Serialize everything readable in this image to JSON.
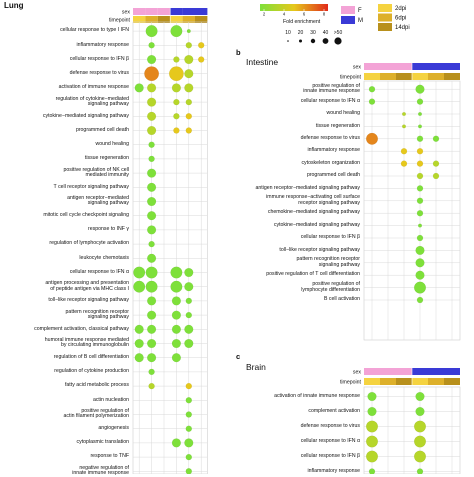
{
  "panels": {
    "lung": {
      "title": "Lung",
      "sex_label": "sex",
      "timepoint_label": "timepoint",
      "terms": [
        "cellular response to type I IFN",
        "inflammatory response",
        "cellular response to IFN β",
        "defense response to virus",
        "activation of immune response",
        "regulation of cytokine−mediated\nsignaling pathway",
        "cytokine−mediated signaling pathway",
        "programmed cell death",
        "wound healing",
        "tissue regeneration",
        "positive regulation of NK cell\nmediated immunity",
        "T cell receptor signaling pathway",
        "antigen receptor−mediated\nsignaling pathway",
        "mitotic cell cycle checkpoint signaling",
        "response to INF γ",
        "regulation of lymphocyte activation",
        "leukocyte chemotaxis",
        "cellular response to IFN α",
        "antigen processing and presentation\nof peptide antigen via MHC class I",
        "toll−like receptor signaling pathway",
        "pattern recognition receptor\nsignaling pathway",
        "complement activation, classical pathway",
        "humoral immune response mediated\nby circulating immunoglobulin",
        "regulation of B cell differentiation",
        "regulation of cytokine production",
        "fatty acid metabolic process",
        "actin nucleation",
        "positive regulation of\nactin filament polymerization",
        "angiogenesis",
        "cytoplasmic translation",
        "response to TNF",
        "negative regulation of\ninnate immune response"
      ]
    },
    "intestine": {
      "letter": "b",
      "title": "Intestine",
      "sex_label": "sex",
      "timepoint_label": "timepoint",
      "terms": [
        "positive regulation of\ninnate immune response",
        "cellular response to IFN α",
        "wound healing",
        "tissue regeneration",
        "defense response to virus",
        "inflammatory response",
        "cytoskeleton organization",
        "programmed cell death",
        "antigen receptor−mediated signaling pathway",
        "immune response−activating cell surface\nreceptor signaling pathway",
        "chemokine−mediated signaling pathway",
        "cytokine−mediated signaling pathway",
        "cellular response to IFN β",
        "toll−like receptor signaling pathway",
        "pattern recognition receptor\nsignaling pathway",
        "positive regulation of T cell differentiation",
        "positive regulation of\nlymphocyte differentiation",
        "B cell activation"
      ]
    },
    "brain": {
      "letter": "c",
      "title": "Brain",
      "sex_label": "sex",
      "timepoint_label": "timepoint",
      "terms": [
        "activation of innate immune response",
        "complement activation",
        "defense response to virus",
        "cellular response to IFN α",
        "cellular response to IFN β",
        "inflammatory response"
      ]
    }
  },
  "legend": {
    "color_ticks": [
      "2",
      "4",
      "6",
      "8"
    ],
    "size_title": "Fold enrichment",
    "size_ticks": [
      "10",
      "20",
      "30",
      "40",
      ">50"
    ],
    "sex": [
      {
        "label": "F",
        "color": "#f3a3d6"
      },
      {
        "label": "M",
        "color": "#3a3ad6"
      }
    ],
    "timepoint": [
      {
        "label": "2dpi",
        "color": "#f5d340"
      },
      {
        "label": "6dpi",
        "color": "#ddb02a"
      },
      {
        "label": "14dpi",
        "color": "#b8901c"
      }
    ]
  },
  "colors": {
    "low": "#7ee03a",
    "mid": "#e6c81c",
    "high": "#e12a1a",
    "grid": "#d9d9d9"
  },
  "chart_data": [
    {
      "type": "scatter",
      "name": "lung",
      "x": [
        "F 2dpi",
        "F 6dpi",
        "F 14dpi",
        "M 2dpi",
        "M 6dpi",
        "M 14dpi"
      ],
      "points": [
        [
          0,
          1,
          3,
          0
        ],
        [
          0,
          3,
          3,
          0
        ],
        [
          0,
          4,
          0,
          0
        ],
        [
          1,
          1,
          1,
          0
        ],
        [
          1,
          4,
          1,
          1
        ],
        [
          1,
          5,
          1,
          2
        ],
        [
          2,
          1,
          2,
          0
        ],
        [
          2,
          3,
          1,
          1
        ],
        [
          2,
          4,
          2,
          1
        ],
        [
          2,
          5,
          1,
          2
        ],
        [
          3,
          1,
          4,
          3
        ],
        [
          3,
          3,
          4,
          2
        ],
        [
          3,
          4,
          2,
          1
        ],
        [
          4,
          0,
          2,
          0
        ],
        [
          4,
          1,
          2,
          1
        ],
        [
          4,
          3,
          2,
          1
        ],
        [
          4,
          4,
          2,
          1
        ],
        [
          5,
          1,
          2,
          1
        ],
        [
          5,
          3,
          1,
          1
        ],
        [
          5,
          4,
          1,
          1
        ],
        [
          6,
          1,
          2,
          1
        ],
        [
          6,
          3,
          1,
          1
        ],
        [
          6,
          4,
          1,
          2
        ],
        [
          7,
          1,
          2,
          1
        ],
        [
          7,
          3,
          1,
          2
        ],
        [
          7,
          4,
          1,
          2
        ],
        [
          8,
          1,
          1,
          0
        ],
        [
          9,
          1,
          1,
          0
        ],
        [
          10,
          1,
          2,
          0
        ],
        [
          11,
          1,
          2,
          0
        ],
        [
          12,
          1,
          2,
          0
        ],
        [
          13,
          1,
          2,
          0
        ],
        [
          14,
          1,
          2,
          0
        ],
        [
          15,
          1,
          1,
          0
        ],
        [
          16,
          1,
          2,
          0
        ],
        [
          17,
          0,
          3,
          0
        ],
        [
          17,
          1,
          3,
          0
        ],
        [
          17,
          3,
          3,
          0
        ],
        [
          17,
          4,
          2,
          0
        ],
        [
          18,
          0,
          3,
          0
        ],
        [
          18,
          1,
          3,
          0
        ],
        [
          18,
          3,
          3,
          0
        ],
        [
          18,
          4,
          2,
          0
        ],
        [
          19,
          1,
          2,
          0
        ],
        [
          19,
          3,
          2,
          0
        ],
        [
          19,
          4,
          1,
          0
        ],
        [
          20,
          1,
          2,
          0
        ],
        [
          20,
          3,
          2,
          0
        ],
        [
          20,
          4,
          1,
          0
        ],
        [
          21,
          0,
          2,
          0
        ],
        [
          21,
          1,
          2,
          0
        ],
        [
          21,
          3,
          2,
          0
        ],
        [
          21,
          4,
          2,
          0
        ],
        [
          22,
          0,
          2,
          0
        ],
        [
          22,
          1,
          2,
          0
        ],
        [
          22,
          3,
          2,
          0
        ],
        [
          22,
          4,
          2,
          0
        ],
        [
          23,
          0,
          2,
          0
        ],
        [
          23,
          1,
          2,
          0
        ],
        [
          23,
          3,
          2,
          0
        ],
        [
          24,
          1,
          1,
          0
        ],
        [
          25,
          1,
          1,
          1
        ],
        [
          25,
          4,
          1,
          2
        ],
        [
          26,
          4,
          1,
          0
        ],
        [
          27,
          4,
          1,
          0
        ],
        [
          28,
          4,
          1,
          0
        ],
        [
          29,
          3,
          2,
          0
        ],
        [
          29,
          4,
          2,
          0
        ],
        [
          30,
          4,
          1,
          0
        ],
        [
          31,
          4,
          1,
          0
        ]
      ]
    },
    {
      "type": "scatter",
      "name": "intestine",
      "x": [
        "F 2dpi",
        "F 6dpi",
        "F 14dpi",
        "M 2dpi",
        "M 6dpi",
        "M 14dpi"
      ],
      "points": [
        [
          0,
          0,
          1,
          0
        ],
        [
          0,
          3,
          2,
          0
        ],
        [
          1,
          0,
          1,
          0
        ],
        [
          1,
          3,
          1,
          0
        ],
        [
          2,
          2,
          0,
          1
        ],
        [
          2,
          3,
          0,
          0
        ],
        [
          3,
          2,
          0,
          1
        ],
        [
          3,
          3,
          0,
          0
        ],
        [
          4,
          0,
          3,
          3
        ],
        [
          4,
          3,
          1,
          0
        ],
        [
          4,
          4,
          1,
          0
        ],
        [
          5,
          2,
          1,
          2
        ],
        [
          5,
          3,
          1,
          2
        ],
        [
          6,
          2,
          1,
          2
        ],
        [
          6,
          3,
          1,
          2
        ],
        [
          6,
          4,
          1,
          1
        ],
        [
          7,
          3,
          1,
          1
        ],
        [
          7,
          4,
          1,
          1
        ],
        [
          8,
          3,
          1,
          0
        ],
        [
          9,
          3,
          1,
          0
        ],
        [
          10,
          3,
          1,
          0
        ],
        [
          11,
          3,
          0,
          0
        ],
        [
          12,
          3,
          1,
          0
        ],
        [
          13,
          3,
          2,
          0
        ],
        [
          14,
          3,
          2,
          0
        ],
        [
          15,
          3,
          2,
          0
        ],
        [
          16,
          3,
          3,
          0
        ],
        [
          17,
          3,
          1,
          0
        ]
      ]
    },
    {
      "type": "scatter",
      "name": "brain",
      "x": [
        "F 2dpi",
        "F 6dpi",
        "F 14dpi",
        "M 2dpi",
        "M 6dpi",
        "M 14dpi"
      ],
      "points": [
        [
          0,
          0,
          2,
          0
        ],
        [
          0,
          3,
          2,
          0
        ],
        [
          1,
          0,
          2,
          0
        ],
        [
          1,
          3,
          2,
          0
        ],
        [
          2,
          0,
          3,
          1
        ],
        [
          2,
          3,
          3,
          1
        ],
        [
          3,
          0,
          3,
          1
        ],
        [
          3,
          3,
          3,
          1
        ],
        [
          4,
          0,
          3,
          1
        ],
        [
          4,
          3,
          3,
          1
        ],
        [
          5,
          0,
          1,
          0
        ],
        [
          5,
          3,
          1,
          0
        ]
      ]
    }
  ]
}
